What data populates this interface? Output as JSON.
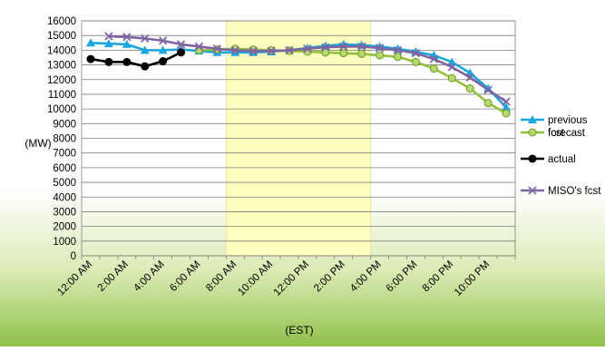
{
  "chart_data": {
    "type": "line",
    "xlabel": "(EST)",
    "ylabel": "(MW)",
    "ylim": [
      0,
      16000
    ],
    "ytick_step": 1000,
    "grid": true,
    "legend_position": "right",
    "highlight_window": {
      "from": "8:00 AM",
      "to": "4:00 PM"
    },
    "categories": [
      "12:00 AM",
      "1:00 AM",
      "2:00 AM",
      "3:00 AM",
      "4:00 AM",
      "5:00 AM",
      "6:00 AM",
      "7:00 AM",
      "8:00 AM",
      "9:00 AM",
      "10:00 AM",
      "11:00 AM",
      "12:00 PM",
      "1:00 PM",
      "2:00 PM",
      "3:00 PM",
      "4:00 PM",
      "5:00 PM",
      "6:00 PM",
      "7:00 PM",
      "8:00 PM",
      "9:00 PM",
      "10:00 PM",
      "11:00 PM"
    ],
    "tick_labels": [
      "12:00 AM",
      "2:00 AM",
      "4:00 AM",
      "6:00 AM",
      "8:00 AM",
      "10:00 AM",
      "12:00 PM",
      "2:00 PM",
      "4:00 PM",
      "6:00 PM",
      "8:00 PM",
      "10:00 PM"
    ],
    "series": [
      {
        "name": "previous fcst",
        "color": "#1BA6E0",
        "marker": "triangle",
        "values": [
          14500,
          14450,
          14400,
          14000,
          14000,
          14050,
          13950,
          13850,
          13850,
          13850,
          13900,
          14000,
          14150,
          14300,
          14400,
          14350,
          14250,
          14100,
          13900,
          13650,
          13200,
          12450,
          11400,
          10100
        ]
      },
      {
        "name": "forecast",
        "color": "#92C13A",
        "marker": "circle",
        "values": [
          null,
          null,
          null,
          null,
          null,
          null,
          14000,
          14050,
          14100,
          14050,
          14000,
          13950,
          13900,
          13850,
          13800,
          13750,
          13650,
          13550,
          13200,
          12750,
          12100,
          11400,
          10400,
          9700
        ]
      },
      {
        "name": "actual",
        "color": "#000000",
        "marker": "circle",
        "values": [
          13400,
          13200,
          13200,
          12900,
          13250,
          13850,
          null,
          null,
          null,
          null,
          null,
          null,
          null,
          null,
          null,
          null,
          null,
          null,
          null,
          null,
          null,
          null,
          null,
          null
        ]
      },
      {
        "name": "MISO's fcst",
        "color": "#8064A2",
        "marker": "x",
        "values": [
          null,
          14950,
          14900,
          14800,
          14650,
          14400,
          14250,
          14100,
          14000,
          13950,
          13950,
          14000,
          14100,
          14200,
          14250,
          14250,
          14150,
          14000,
          13800,
          13400,
          12850,
          12150,
          11300,
          10500
        ]
      }
    ]
  }
}
